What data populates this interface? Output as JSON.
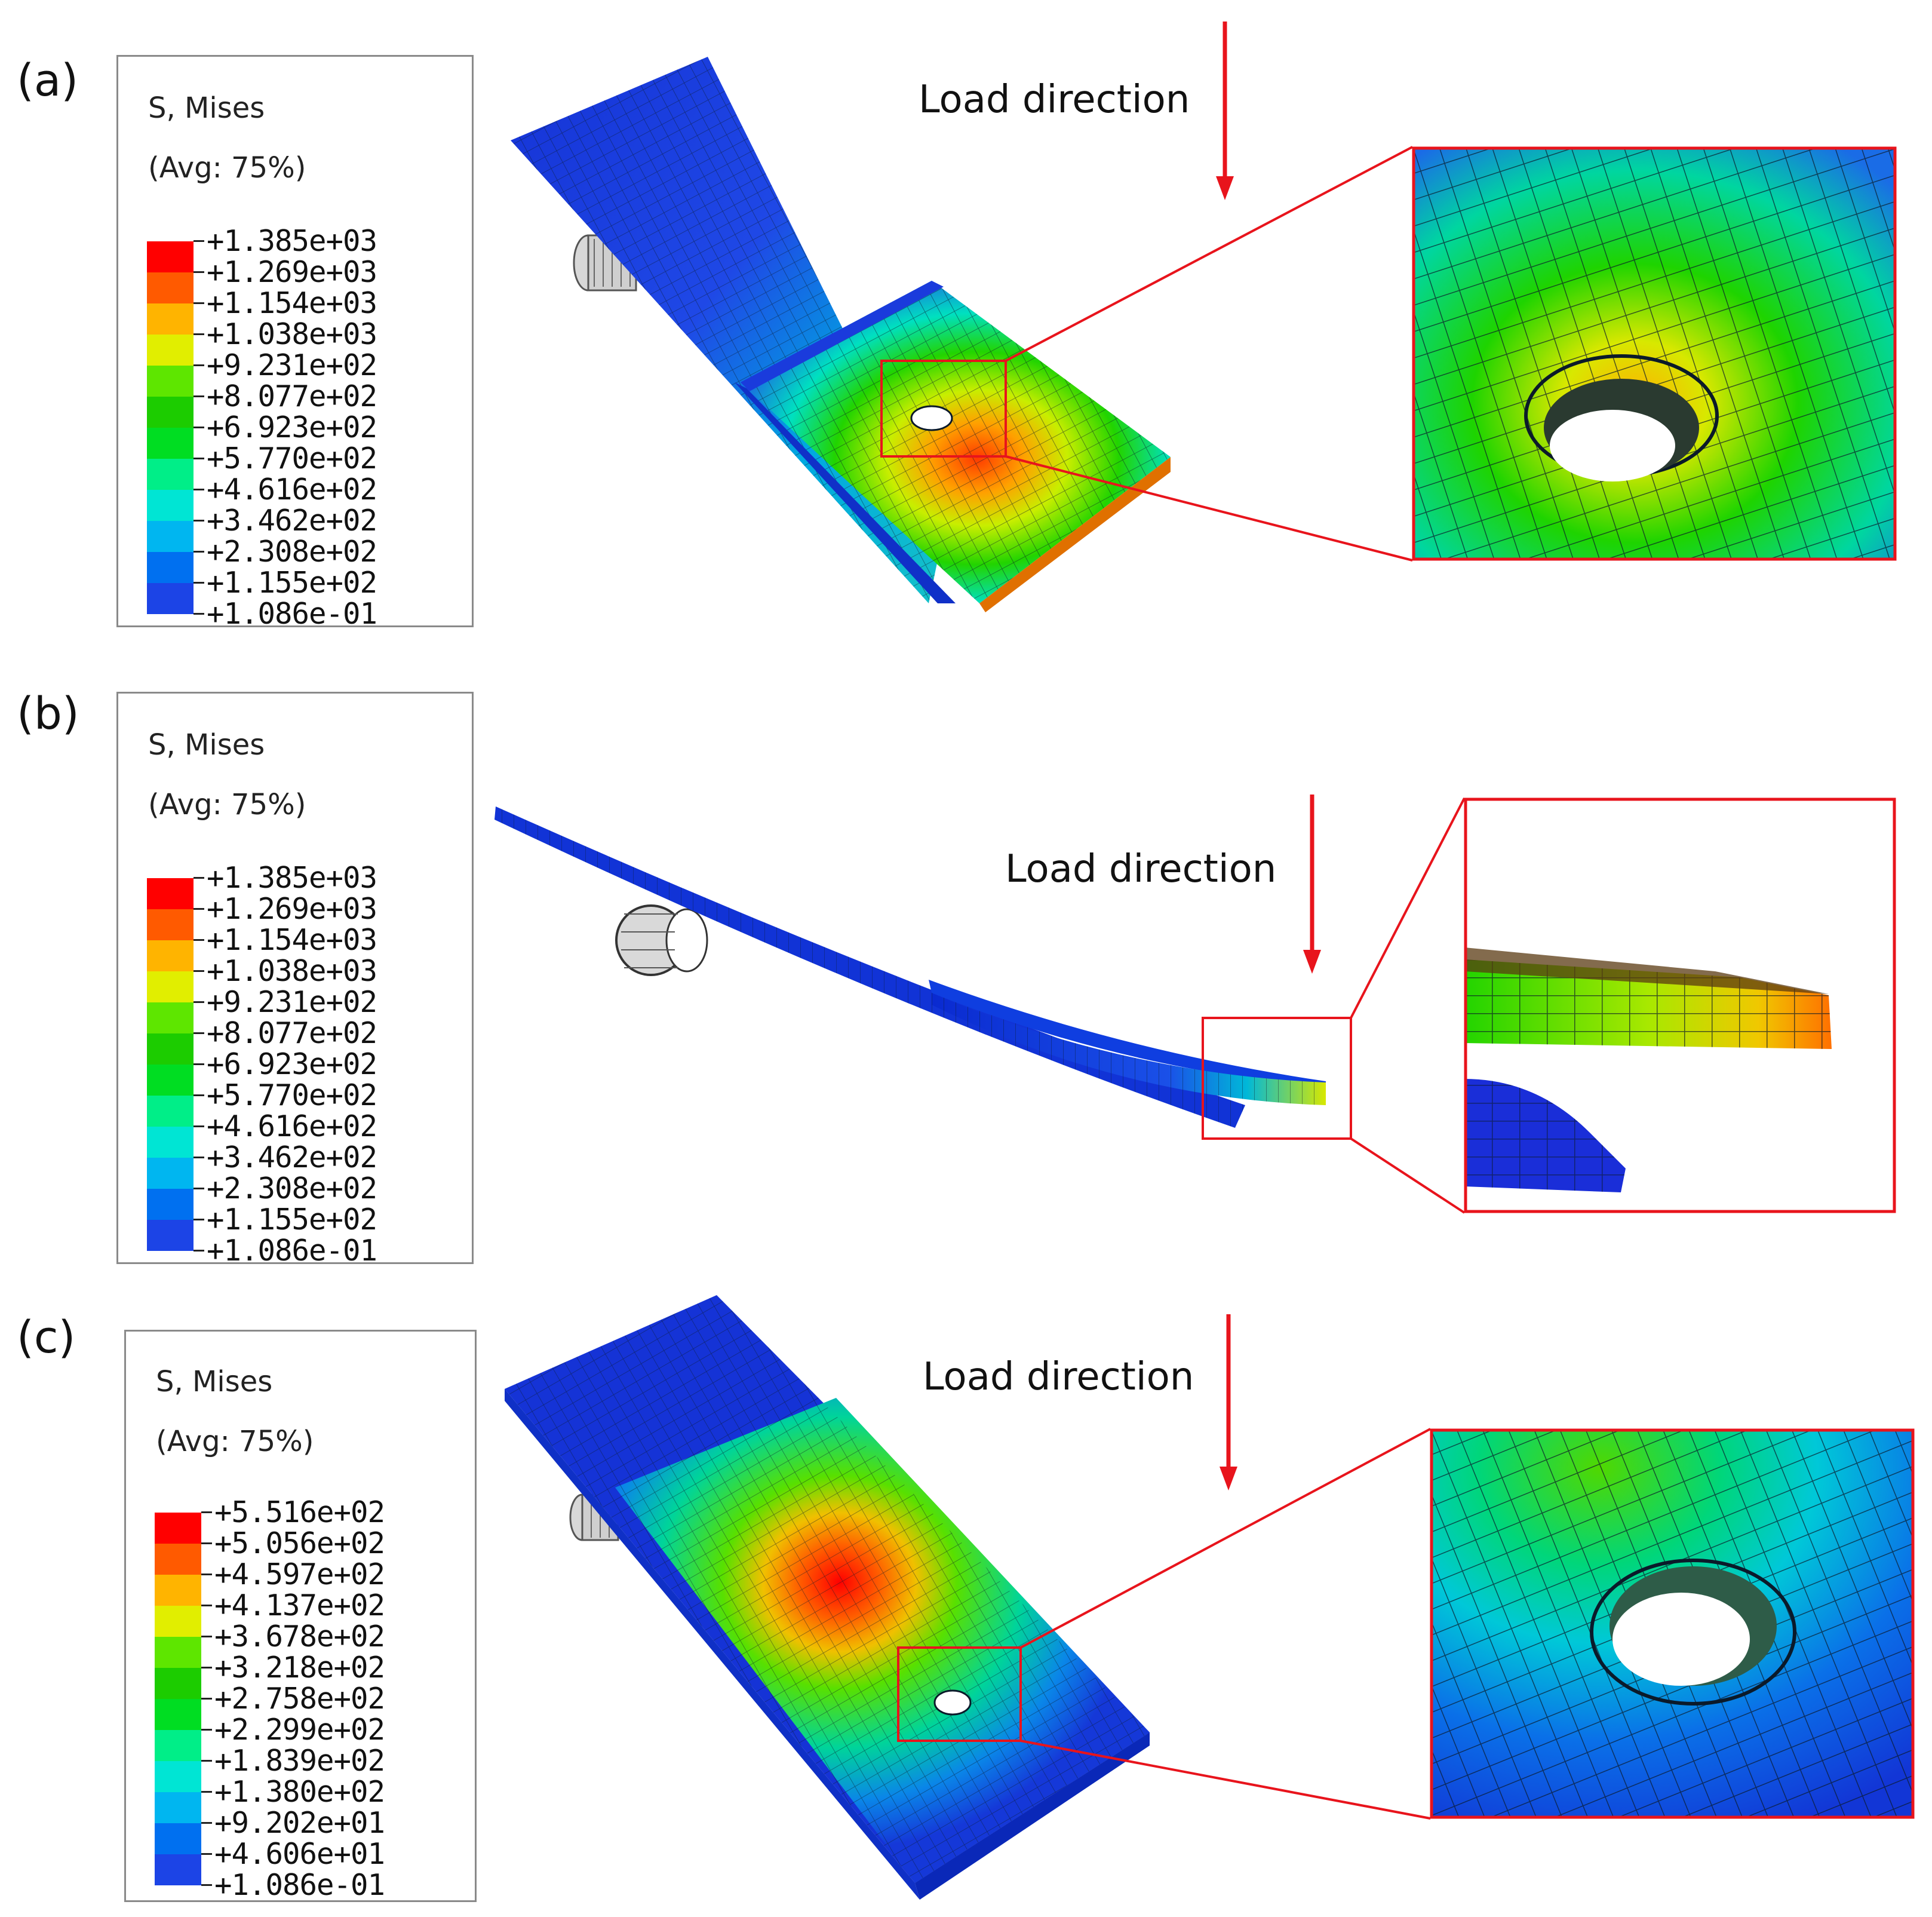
{
  "panels": [
    {
      "label": "(a)",
      "legend_title": "S, Mises",
      "legend_sub": "(Avg: 75%)",
      "legend_values": [
        "+1.385e+03",
        "+1.269e+03",
        "+1.154e+03",
        "+1.038e+03",
        "+9.231e+02",
        "+8.077e+02",
        "+6.923e+02",
        "+5.770e+02",
        "+4.616e+02",
        "+3.462e+02",
        "+2.308e+02",
        "+1.155e+02",
        "+1.086e-01"
      ],
      "load_label": "Load direction"
    },
    {
      "label": "(b)",
      "legend_title": "S, Mises",
      "legend_sub": "(Avg: 75%)",
      "legend_values": [
        "+1.385e+03",
        "+1.269e+03",
        "+1.154e+03",
        "+1.038e+03",
        "+9.231e+02",
        "+8.077e+02",
        "+6.923e+02",
        "+5.770e+02",
        "+4.616e+02",
        "+3.462e+02",
        "+2.308e+02",
        "+1.155e+02",
        "+1.086e-01"
      ],
      "load_label": "Load direction"
    },
    {
      "label": "(c)",
      "legend_title": "S, Mises",
      "legend_sub": "(Avg: 75%)",
      "legend_values": [
        "+5.516e+02",
        "+5.056e+02",
        "+4.597e+02",
        "+4.137e+02",
        "+3.678e+02",
        "+3.218e+02",
        "+2.758e+02",
        "+2.299e+02",
        "+1.839e+02",
        "+1.380e+02",
        "+9.202e+01",
        "+4.606e+01",
        "+1.086e-01"
      ],
      "load_label": "Load direction"
    }
  ],
  "colors": {
    "contour_scale": [
      "#ff0000",
      "#ff5a00",
      "#ffb400",
      "#e1ee00",
      "#5ee600",
      "#1ccc00",
      "#00dd22",
      "#00ee88",
      "#00e5d4",
      "#00b6f0",
      "#0070f0",
      "#1c44e6",
      "#0000cd"
    ],
    "arrow": "#e8141c",
    "zoom_frame": "#e8141c",
    "mesh": "#0b1a2a"
  }
}
